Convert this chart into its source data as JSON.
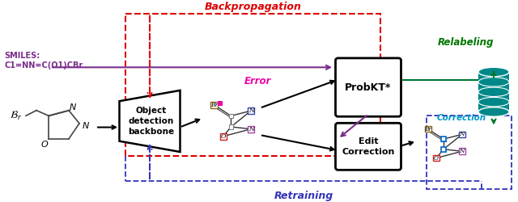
{
  "bg_color": "#ffffff",
  "smiles_text": "SMILES:\nC1=NN=C(O1)CBr",
  "smiles_color": "#7B2D8B",
  "backprop_text": "Backpropagation",
  "backprop_color": "#dd0000",
  "retraining_text": "Retraining",
  "retraining_color": "#3333bb",
  "relabeling_text": "Relabeling",
  "relabeling_color": "#007700",
  "error_text": "Error",
  "error_color": "#ee00aa",
  "correction_text": "Correction",
  "correction_color": "#0099cc",
  "probkt_text": "ProbKT*",
  "edit_text": "Edit\nCorrection",
  "object_text": "Object\ndetection\nbackbone",
  "purple_color": "#7B2D8B",
  "green_color": "#007733",
  "teal_color": "#008888",
  "red_dashed_color": "#dd0000",
  "blue_dashed_color": "#3333bb",
  "black": "#000000"
}
